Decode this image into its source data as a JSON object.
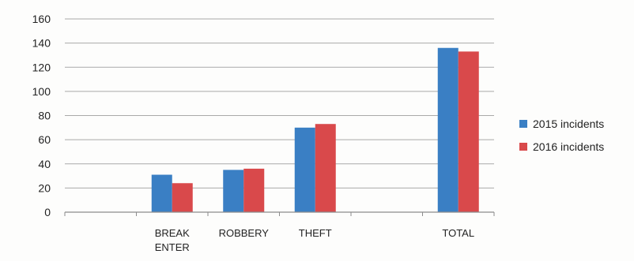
{
  "chart_data": {
    "type": "bar",
    "categories": [
      [
        "",
        ""
      ],
      [
        "BREAK",
        "ENTER"
      ],
      [
        "ROBBERY",
        ""
      ],
      [
        "THEFT",
        ""
      ],
      [
        "",
        ""
      ],
      [
        "TOTAL",
        ""
      ]
    ],
    "series": [
      {
        "name": "2015 incidents",
        "color": "#3a7fc4",
        "values": [
          null,
          31,
          35,
          70,
          null,
          136
        ]
      },
      {
        "name": "2016 incidents",
        "color": "#d9494b",
        "values": [
          null,
          24,
          36,
          73,
          null,
          133
        ]
      }
    ],
    "y_ticks": [
      "0",
      "20",
      "40",
      "60",
      "80",
      "100",
      "120",
      "140",
      "160"
    ],
    "ylim": [
      0,
      160
    ],
    "grid": true,
    "legend_position": "right"
  }
}
